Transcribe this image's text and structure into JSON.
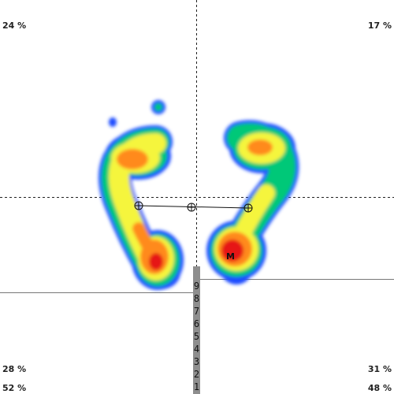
{
  "quadrants": {
    "top_left": "24 %",
    "top_right": "17 %",
    "bottom_left": "28 %",
    "bottom_right": "31 %"
  },
  "totals": {
    "left": "52 %",
    "right": "48 %"
  },
  "marker_label": "M",
  "scale_ticks": [
    "9",
    "8",
    "7",
    "6",
    "5",
    "4",
    "3",
    "2",
    "1"
  ],
  "colors": {
    "background": "#ffffff",
    "pressure_low": "#1e4bff",
    "pressure_mid_low": "#00c878",
    "pressure_mid": "#f5f53c",
    "pressure_high": "#ff8a1e",
    "pressure_max": "#e61414",
    "scale_bar": "#8e8e8e"
  }
}
